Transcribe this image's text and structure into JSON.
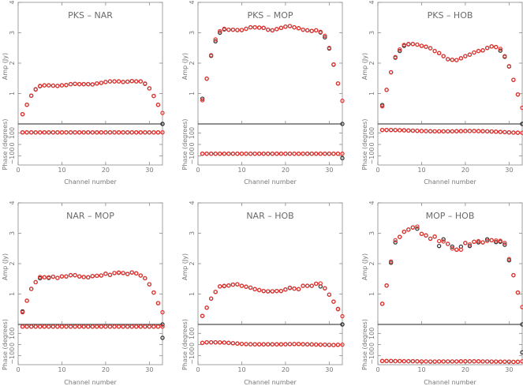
{
  "chart_data": [
    {
      "type": "scatter",
      "title": "PKS  –  NAR",
      "xlabel": "Channel number",
      "ylabel_amp": "Amp (Jy)",
      "ylabel_phase": "Phase (degrees)",
      "xlim": [
        0,
        33
      ],
      "amp_ylim": [
        0,
        4
      ],
      "phase_ylim": [
        -180,
        180
      ],
      "x_ticks": [
        "0",
        "10",
        "20",
        "30"
      ],
      "amp_ticks": [
        "1",
        "2",
        "3",
        "4"
      ],
      "phase_ticks": [
        "−100",
        "0",
        "100"
      ],
      "series": [
        {
          "color": "#333333",
          "amp": [
            0.32,
            0.63,
            0.93,
            1.14,
            1.24,
            1.27,
            1.27,
            1.26,
            1.25,
            1.27,
            1.28,
            1.31,
            1.32,
            1.31,
            1.31,
            1.31,
            1.3,
            1.33,
            1.35,
            1.38,
            1.4,
            1.4,
            1.4,
            1.38,
            1.39,
            1.41,
            1.4,
            1.4,
            1.32,
            1.17,
            0.92,
            0.63,
            0.0
          ],
          "phase": [
            106,
            106,
            106,
            106,
            106,
            106,
            106,
            106,
            106,
            106,
            106,
            106,
            106,
            106,
            106,
            106,
            106,
            106,
            106,
            106,
            106,
            106,
            106,
            106,
            106,
            106,
            106,
            106,
            106,
            106,
            106,
            106,
            180
          ]
        },
        {
          "color": "#e8322e",
          "amp": [
            0.32,
            0.63,
            0.93,
            1.13,
            1.25,
            1.27,
            1.27,
            1.26,
            1.25,
            1.27,
            1.28,
            1.31,
            1.32,
            1.31,
            1.31,
            1.31,
            1.3,
            1.33,
            1.35,
            1.38,
            1.4,
            1.4,
            1.4,
            1.38,
            1.39,
            1.41,
            1.4,
            1.4,
            1.33,
            1.17,
            0.92,
            0.63,
            0.36
          ],
          "phase": [
            106,
            106,
            106,
            106,
            106,
            106,
            106,
            106,
            106,
            106,
            106,
            106,
            106,
            106,
            106,
            106,
            106,
            106,
            106,
            106,
            106,
            106,
            106,
            106,
            106,
            106,
            106,
            106,
            106,
            106,
            106,
            106,
            106
          ]
        }
      ]
    },
    {
      "type": "scatter",
      "title": "PKS  –  MOP",
      "xlabel": "Channel number",
      "ylabel_amp": "Amp (Jy)",
      "ylabel_phase": "Phase (degrees)",
      "xlim": [
        0,
        33
      ],
      "amp_ylim": [
        0,
        4
      ],
      "phase_ylim": [
        -180,
        180
      ],
      "x_ticks": [
        "0",
        "10",
        "20",
        "30"
      ],
      "amp_ticks": [
        "1",
        "2",
        "3",
        "4"
      ],
      "phase_ticks": [
        "−100",
        "0",
        "100"
      ],
      "series": [
        {
          "color": "#333333",
          "amp": [
            0.83,
            1.49,
            2.24,
            2.72,
            3.0,
            3.11,
            3.1,
            3.1,
            3.09,
            3.09,
            3.13,
            3.18,
            3.18,
            3.17,
            3.16,
            3.1,
            3.08,
            3.12,
            3.16,
            3.2,
            3.22,
            3.18,
            3.15,
            3.1,
            3.08,
            3.06,
            3.08,
            3.01,
            2.85,
            2.48,
            1.95,
            1.33,
            0.0
          ],
          "phase": [
            -81,
            -81,
            -81,
            -81,
            -81,
            -81,
            -81,
            -81,
            -81,
            -81,
            -81,
            -81,
            -81,
            -81,
            -81,
            -81,
            -81,
            -81,
            -81,
            -81,
            -81,
            -81,
            -81,
            -81,
            -81,
            -81,
            -81,
            -81,
            -81,
            -81,
            -81,
            -81,
            -120
          ]
        },
        {
          "color": "#e8322e",
          "amp": [
            0.78,
            1.49,
            2.26,
            2.78,
            3.05,
            3.13,
            3.1,
            3.1,
            3.09,
            3.09,
            3.13,
            3.18,
            3.18,
            3.17,
            3.16,
            3.1,
            3.08,
            3.12,
            3.16,
            3.2,
            3.22,
            3.18,
            3.15,
            3.1,
            3.08,
            3.06,
            3.08,
            3.03,
            2.9,
            2.5,
            1.96,
            1.33,
            0.76
          ],
          "phase": [
            -81,
            -81,
            -81,
            -81,
            -81,
            -81,
            -81,
            -81,
            -81,
            -81,
            -81,
            -81,
            -81,
            -81,
            -81,
            -81,
            -81,
            -81,
            -81,
            -81,
            -81,
            -81,
            -81,
            -81,
            -81,
            -81,
            -81,
            -81,
            -81,
            -81,
            -81,
            -81,
            -81
          ]
        }
      ]
    },
    {
      "type": "scatter",
      "title": "PKS  –  HOB",
      "xlabel": "Channel number",
      "ylabel_amp": "Amp (Jy)",
      "ylabel_phase": "Phase (degrees)",
      "xlim": [
        0,
        33
      ],
      "amp_ylim": [
        0,
        4
      ],
      "phase_ylim": [
        -180,
        180
      ],
      "x_ticks": [
        "0",
        "10",
        "20",
        "30"
      ],
      "amp_ticks": [
        "1",
        "2",
        "3",
        "4"
      ],
      "phase_ticks": [
        "−100",
        "0",
        "100"
      ],
      "series": [
        {
          "color": "#333333",
          "amp": [
            0.62,
            1.12,
            1.7,
            2.18,
            2.4,
            2.57,
            2.62,
            2.63,
            2.61,
            2.57,
            2.54,
            2.49,
            2.4,
            2.33,
            2.23,
            2.13,
            2.11,
            2.1,
            2.16,
            2.23,
            2.28,
            2.35,
            2.4,
            2.42,
            2.5,
            2.55,
            2.53,
            2.41,
            2.21,
            1.89,
            1.45,
            0.97,
            0.0
          ],
          "phase": [
            127,
            127,
            127,
            126,
            125,
            124,
            122,
            121,
            120,
            118,
            117,
            116,
            115,
            115,
            115,
            115,
            115,
            116,
            117,
            118,
            118,
            118,
            117,
            116,
            115,
            114,
            112,
            110,
            108,
            106,
            104,
            103,
            180
          ]
        },
        {
          "color": "#e8322e",
          "amp": [
            0.58,
            1.12,
            1.7,
            2.2,
            2.45,
            2.6,
            2.63,
            2.63,
            2.61,
            2.57,
            2.54,
            2.49,
            2.4,
            2.33,
            2.23,
            2.13,
            2.11,
            2.1,
            2.16,
            2.23,
            2.28,
            2.35,
            2.4,
            2.42,
            2.5,
            2.55,
            2.53,
            2.47,
            2.23,
            1.9,
            1.45,
            0.97,
            0.53
          ],
          "phase": [
            127,
            127,
            127,
            126,
            125,
            124,
            122,
            121,
            120,
            118,
            117,
            116,
            115,
            115,
            115,
            115,
            115,
            116,
            117,
            118,
            118,
            118,
            117,
            116,
            115,
            114,
            112,
            110,
            108,
            106,
            104,
            103,
            102
          ]
        }
      ]
    },
    {
      "type": "scatter",
      "title": "NAR  –  MOP",
      "xlabel": "Channel number",
      "ylabel_amp": "Amp (Jy)",
      "ylabel_phase": "Phase (degrees)",
      "xlim": [
        0,
        33
      ],
      "amp_ylim": [
        0,
        4
      ],
      "phase_ylim": [
        -180,
        180
      ],
      "x_ticks": [
        "0",
        "10",
        "20",
        "30"
      ],
      "amp_ticks": [
        "1",
        "2",
        "3",
        "4"
      ],
      "phase_ticks": [
        "−100",
        "0",
        "100"
      ],
      "series": [
        {
          "color": "#333333",
          "amp": [
            0.43,
            0.78,
            1.17,
            1.39,
            1.52,
            1.55,
            1.53,
            1.57,
            1.53,
            1.58,
            1.58,
            1.62,
            1.62,
            1.58,
            1.56,
            1.55,
            1.59,
            1.6,
            1.61,
            1.67,
            1.63,
            1.69,
            1.7,
            1.69,
            1.66,
            1.71,
            1.68,
            1.61,
            1.52,
            1.32,
            1.05,
            0.7,
            0.0
          ],
          "phase": [
            161,
            161,
            161,
            161,
            161,
            161,
            161,
            161,
            161,
            161,
            161,
            161,
            161,
            161,
            161,
            161,
            161,
            161,
            161,
            161,
            161,
            161,
            161,
            161,
            161,
            161,
            161,
            161,
            161,
            161,
            161,
            161,
            60
          ]
        },
        {
          "color": "#e8322e",
          "amp": [
            0.4,
            0.78,
            1.17,
            1.39,
            1.56,
            1.55,
            1.55,
            1.57,
            1.53,
            1.58,
            1.58,
            1.62,
            1.62,
            1.58,
            1.56,
            1.55,
            1.59,
            1.6,
            1.61,
            1.67,
            1.63,
            1.69,
            1.71,
            1.69,
            1.66,
            1.71,
            1.68,
            1.61,
            1.52,
            1.32,
            1.05,
            0.7,
            0.4
          ],
          "phase": [
            161,
            161,
            161,
            161,
            161,
            161,
            161,
            161,
            161,
            161,
            161,
            161,
            161,
            161,
            161,
            161,
            161,
            161,
            161,
            161,
            161,
            161,
            161,
            161,
            161,
            161,
            161,
            161,
            161,
            161,
            161,
            161,
            161
          ]
        }
      ]
    },
    {
      "type": "scatter",
      "title": "NAR  –  HOB",
      "xlabel": "Channel number",
      "ylabel_amp": "Amp (Jy)",
      "ylabel_phase": "Phase (degrees)",
      "xlim": [
        0,
        33
      ],
      "amp_ylim": [
        0,
        4
      ],
      "phase_ylim": [
        -180,
        180
      ],
      "x_ticks": [
        "0",
        "10",
        "20",
        "30"
      ],
      "amp_ticks": [
        "1",
        "2",
        "3",
        "4"
      ],
      "phase_ticks": [
        "−100",
        "0",
        "100"
      ],
      "series": [
        {
          "color": "#333333",
          "amp": [
            0.28,
            0.55,
            0.85,
            1.07,
            1.25,
            1.26,
            1.28,
            1.31,
            1.32,
            1.27,
            1.24,
            1.21,
            1.16,
            1.13,
            1.1,
            1.09,
            1.09,
            1.1,
            1.1,
            1.15,
            1.2,
            1.18,
            1.16,
            1.27,
            1.27,
            1.27,
            1.34,
            1.25,
            1.19,
            0.98,
            0.75,
            0.51,
            0.0
          ],
          "phase": [
            15,
            20,
            20,
            20,
            19,
            18,
            15,
            12,
            9,
            6,
            4,
            3,
            2,
            2,
            2,
            2,
            2,
            2,
            2,
            3,
            4,
            5,
            5,
            3,
            2,
            1,
            0,
            -1,
            -1,
            -3,
            -4,
            -2,
            180
          ]
        },
        {
          "color": "#e8322e",
          "amp": [
            0.28,
            0.55,
            0.85,
            1.07,
            1.25,
            1.27,
            1.28,
            1.31,
            1.32,
            1.27,
            1.24,
            1.21,
            1.16,
            1.13,
            1.1,
            1.09,
            1.09,
            1.1,
            1.1,
            1.15,
            1.21,
            1.18,
            1.16,
            1.27,
            1.27,
            1.27,
            1.34,
            1.35,
            1.19,
            0.98,
            0.75,
            0.5,
            0.27
          ],
          "phase": [
            15,
            20,
            20,
            20,
            19,
            18,
            15,
            12,
            9,
            6,
            4,
            3,
            2,
            2,
            2,
            2,
            2,
            2,
            2,
            3,
            4,
            5,
            5,
            3,
            2,
            1,
            0,
            -1,
            -1,
            -3,
            -4,
            -2,
            -1
          ]
        }
      ]
    },
    {
      "type": "scatter",
      "title": "MOP  –  HOB",
      "xlabel": "Channel number",
      "ylabel_amp": "Amp (Jy)",
      "ylabel_phase": "Phase (degrees)",
      "xlim": [
        0,
        33
      ],
      "amp_ylim": [
        0,
        4
      ],
      "phase_ylim": [
        -180,
        180
      ],
      "x_ticks": [
        "0",
        "10",
        "20",
        "30"
      ],
      "amp_ticks": [
        "1",
        "2",
        "3",
        "4"
      ],
      "phase_ticks": [
        "−100",
        "0",
        "100"
      ],
      "series": [
        {
          "color": "#333333",
          "amp": [
            0.68,
            1.28,
            2.03,
            2.7,
            2.88,
            3.05,
            3.12,
            3.19,
            3.15,
            2.98,
            2.93,
            2.82,
            2.89,
            2.58,
            2.8,
            2.65,
            2.56,
            2.46,
            2.56,
            2.68,
            2.58,
            2.72,
            2.7,
            2.7,
            2.8,
            2.77,
            2.71,
            2.72,
            2.62,
            2.11,
            1.62,
            1.05,
            0.0
          ],
          "phase": [
            -147,
            -147,
            -147,
            -148,
            -148,
            -149,
            -149,
            -149,
            -150,
            -151,
            -151,
            -152,
            -152,
            -151,
            -151,
            -151,
            -151,
            -151,
            -150,
            -150,
            -150,
            -150,
            -150,
            -151,
            -151,
            -152,
            -152,
            -153,
            -153,
            -153,
            -155,
            -154,
            -70
          ]
        },
        {
          "color": "#e8322e",
          "amp": [
            0.68,
            1.28,
            2.07,
            2.77,
            2.88,
            3.05,
            3.12,
            3.19,
            3.22,
            2.98,
            2.93,
            2.82,
            2.89,
            2.74,
            2.73,
            2.65,
            2.5,
            2.46,
            2.46,
            2.68,
            2.63,
            2.72,
            2.74,
            2.7,
            2.75,
            2.77,
            2.76,
            2.75,
            2.68,
            2.15,
            1.62,
            1.05,
            0.57
          ],
          "phase": [
            -147,
            -147,
            -147,
            -148,
            -148,
            -149,
            -149,
            -149,
            -150,
            -151,
            -151,
            -152,
            -152,
            -151,
            -151,
            -151,
            -151,
            -151,
            -150,
            -150,
            -150,
            -150,
            -150,
            -151,
            -151,
            -152,
            -152,
            -153,
            -153,
            -153,
            -155,
            -154,
            -150
          ]
        }
      ]
    }
  ]
}
